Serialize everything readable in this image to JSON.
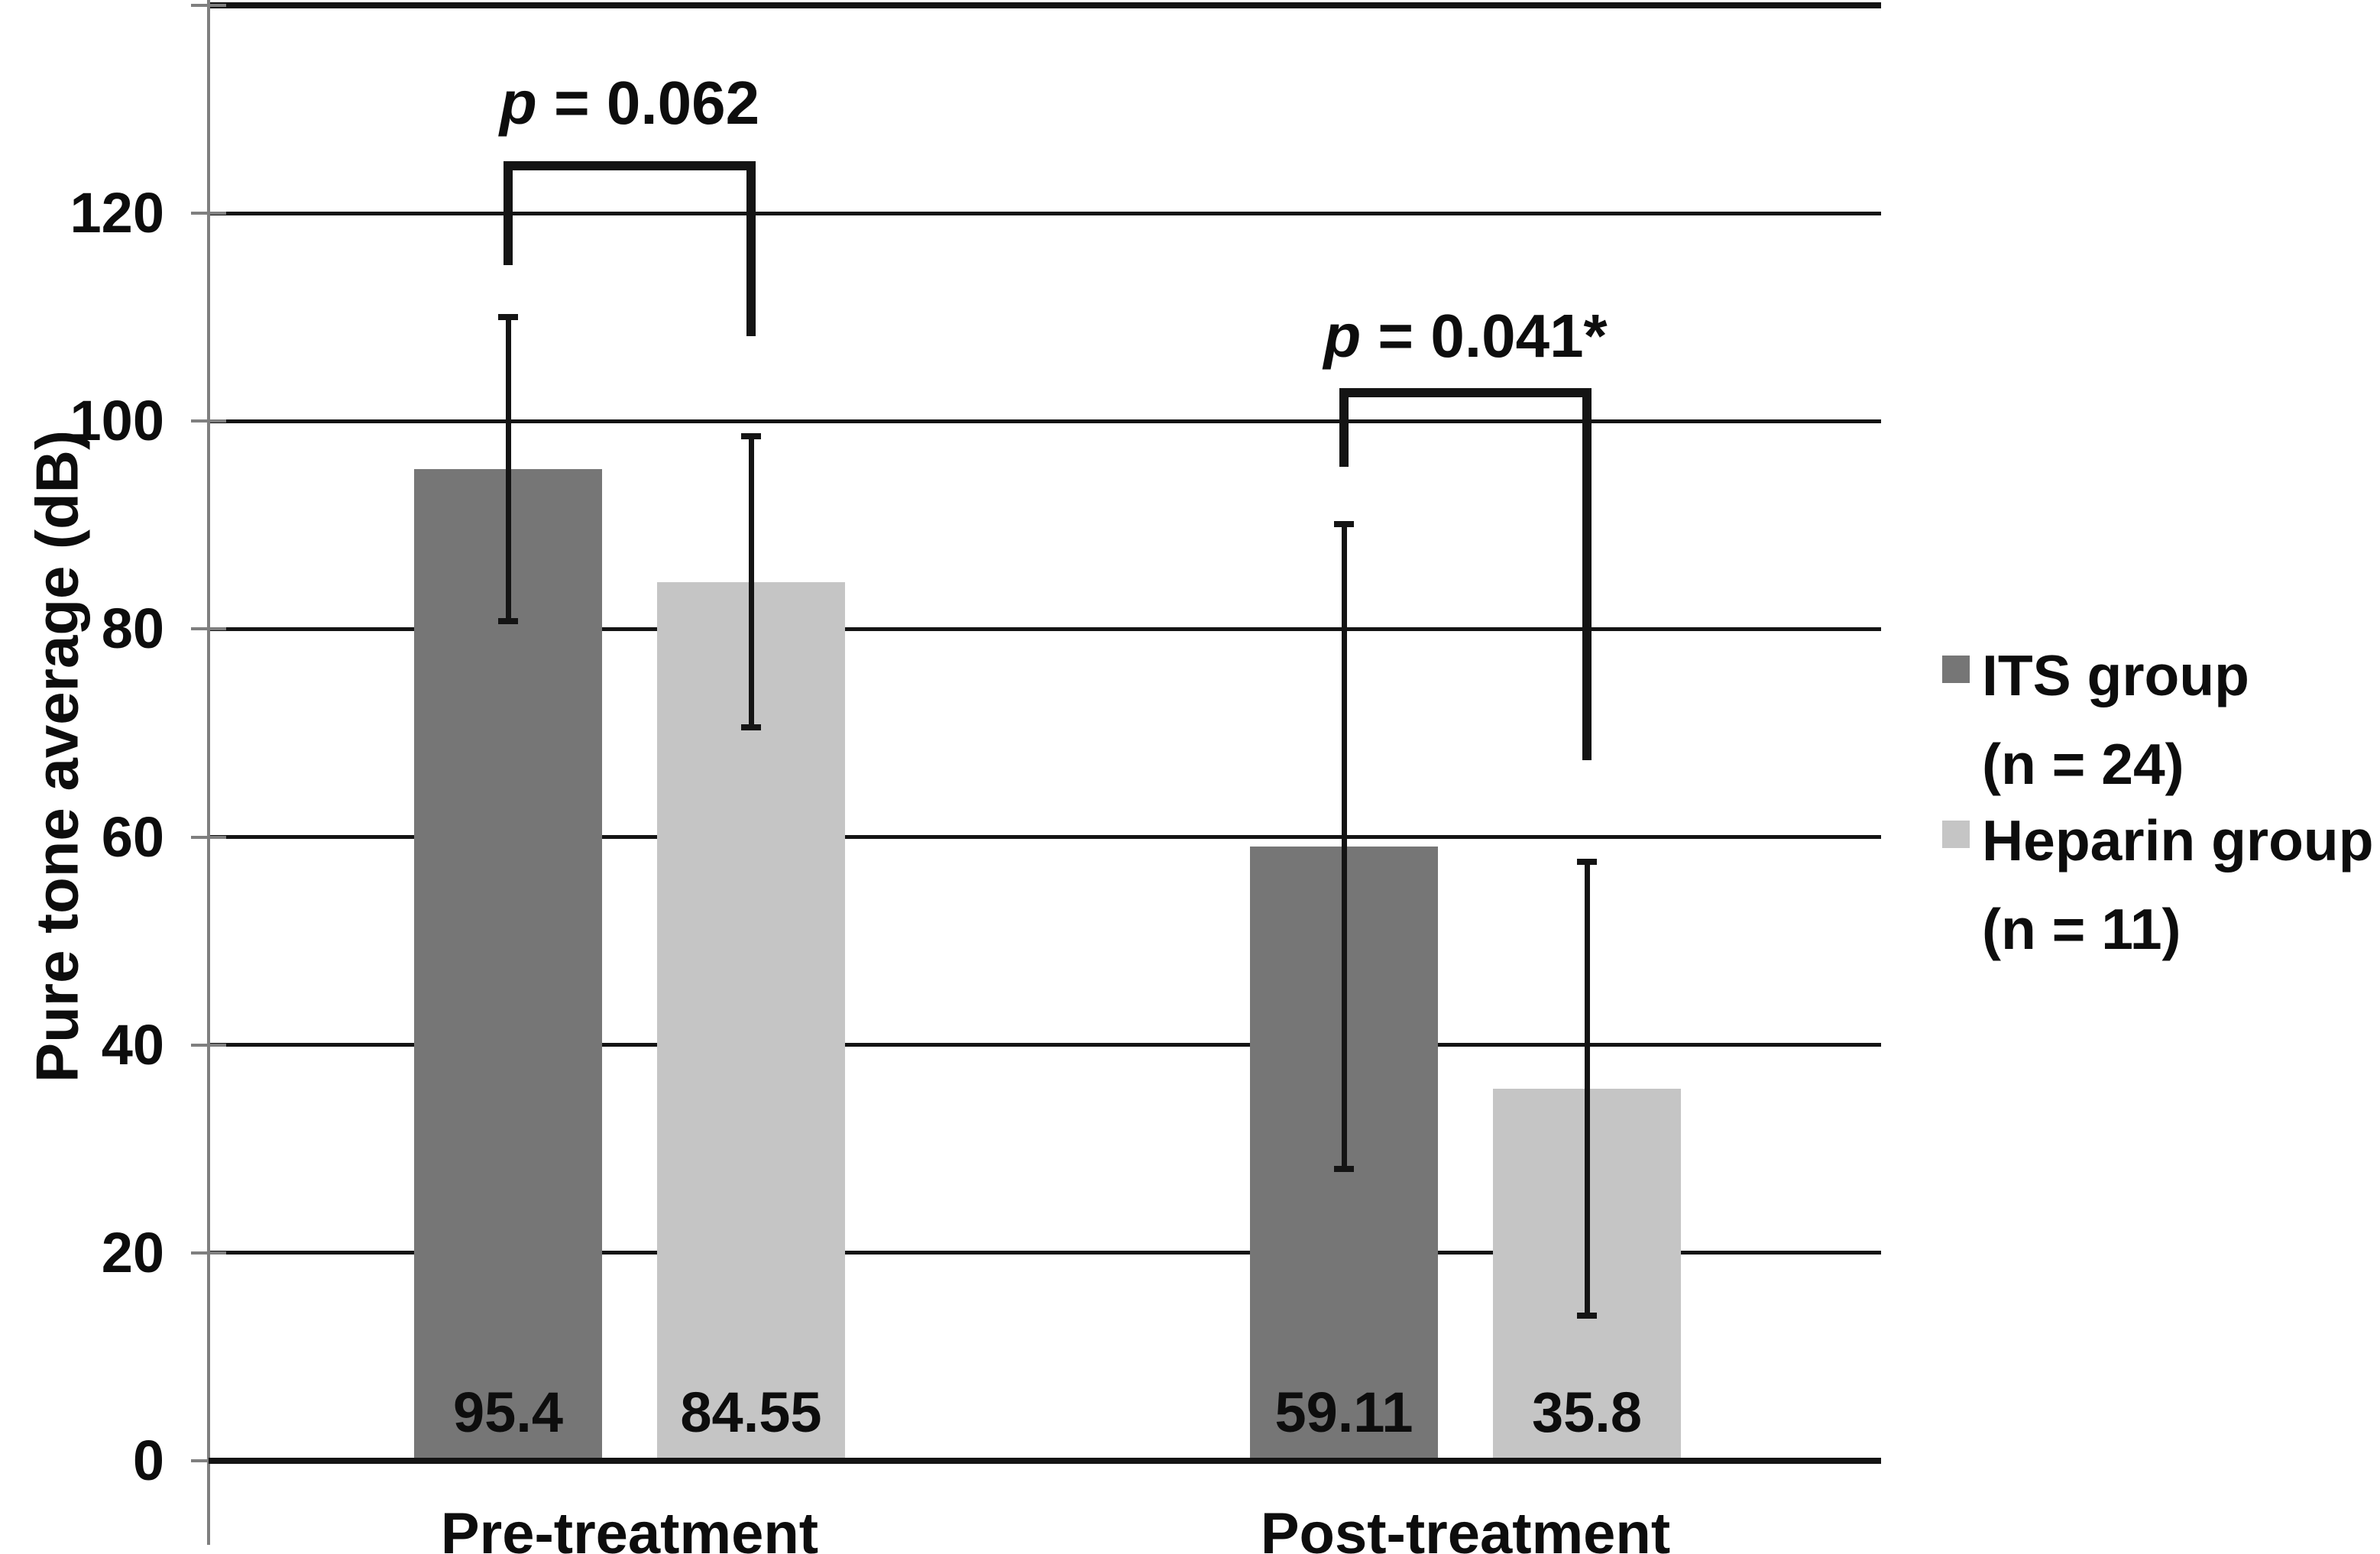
{
  "chart_data": {
    "type": "bar",
    "title": "",
    "categories": [
      "Pre-treatment",
      "Post-treatment"
    ],
    "series": [
      {
        "name": "ITS group (n = 24)",
        "legend_lines": [
          "ITS group",
          "(n = 24)"
        ],
        "color": "#767676",
        "values": [
          95.4,
          59.11
        ],
        "value_labels": [
          "95.4",
          "59.11"
        ],
        "errors": [
          14.6,
          31.0
        ]
      },
      {
        "name": "Heparin group (n = 11)",
        "legend_lines": [
          "Heparin group",
          "(n = 11)"
        ],
        "color": "#c5c5c5",
        "values": [
          84.55,
          35.8
        ],
        "value_labels": [
          "84.55",
          "35.8"
        ],
        "errors": [
          14.0,
          21.8
        ]
      }
    ],
    "ylabel": "Pure tone average (dB)",
    "xlabel": "",
    "ylim": [
      0,
      140
    ],
    "yticks": [
      0,
      20,
      40,
      60,
      80,
      100,
      120
    ],
    "grid": true,
    "legend_position": "right-outside",
    "annotations": [
      {
        "text": "p = 0.062",
        "italic_prefix": "p",
        "suffix": " = 0.062",
        "category_index": 0,
        "bracket_top_db": 125.0,
        "left_leg_bottom_db": 115.0,
        "right_leg_bottom_db": 108.2
      },
      {
        "text": "p = 0.041*",
        "italic_prefix": "p",
        "suffix": " = 0.041*",
        "category_index": 1,
        "bracket_top_db": 103.2,
        "left_leg_bottom_db": 95.6,
        "right_leg_bottom_db": 67.4
      }
    ],
    "colors": {
      "line": "#141414",
      "axis": "#7f7f7f",
      "text": "#0d0d0d"
    }
  }
}
